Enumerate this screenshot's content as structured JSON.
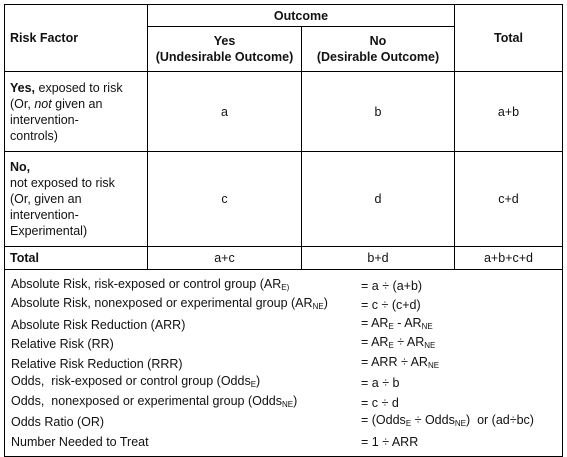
{
  "table": {
    "header": {
      "risk_factor": "Risk Factor",
      "outcome": "Outcome",
      "yes": "Yes\n(Undesirable Outcome)",
      "no": "No\n(Desirable Outcome)",
      "total": "Total"
    },
    "rows": [
      {
        "label": [
          {
            "bold": "Yes,"
          },
          " exposed to risk\n(Or, ",
          {
            "italic": "not"
          },
          " given an\nintervention-\ncontrols)"
        ],
        "cells": [
          "a",
          "b",
          "a+b"
        ]
      },
      {
        "label": [
          {
            "bold": "No,"
          },
          "\nnot exposed to risk\n(Or, given an\nintervention-\nExperimental)"
        ],
        "cells": [
          "c",
          "d",
          "c+d"
        ]
      },
      {
        "label": [
          {
            "bold": "Total"
          }
        ],
        "cells": [
          "a+c",
          "b+d",
          "a+b+c+d"
        ]
      }
    ]
  },
  "formulas": [
    {
      "term": [
        "Absolute Risk, risk-exposed or control group (AR",
        {
          "sub": "E)"
        }
      ],
      "formula": [
        "= a ÷ (a+b)"
      ]
    },
    {
      "term": [
        "Absolute Risk, nonexposed or experimental group (AR",
        {
          "sub": "NE"
        },
        ")"
      ],
      "formula": [
        "= c ÷ (c+d)"
      ]
    },
    {
      "term": [
        "Absolute Risk Reduction (ARR)"
      ],
      "formula": [
        "= AR",
        {
          "sub": "E"
        },
        " - AR",
        {
          "sub": "NE"
        }
      ]
    },
    {
      "term": [
        "Relative Risk (RR)"
      ],
      "formula": [
        "= AR",
        {
          "sub": "E"
        },
        " ÷ AR",
        {
          "sub": "NE"
        }
      ]
    },
    {
      "term": [
        "Relative Risk Reduction (RRR)"
      ],
      "formula": [
        "= ARR ÷ AR",
        {
          "sub": "NE"
        }
      ]
    },
    {
      "term": [
        "Odds,  risk-exposed or control group (Odds",
        {
          "sub": "E"
        },
        ")"
      ],
      "formula": [
        "= a ÷ b"
      ]
    },
    {
      "term": [
        "Odds,  nonexposed or experimental group (Odds",
        {
          "sub": "NE"
        },
        ")"
      ],
      "formula": [
        "= c ÷ d"
      ]
    },
    {
      "term": [
        "Odds Ratio (OR)"
      ],
      "formula": [
        "= (Odds",
        {
          "sub": "E"
        },
        " ÷ Odds",
        {
          "sub": "NE"
        },
        ")  or (ad÷bc)"
      ]
    },
    {
      "term": [
        "Number Needed to Treat"
      ],
      "formula": [
        "= 1 ÷ ARR"
      ]
    }
  ]
}
